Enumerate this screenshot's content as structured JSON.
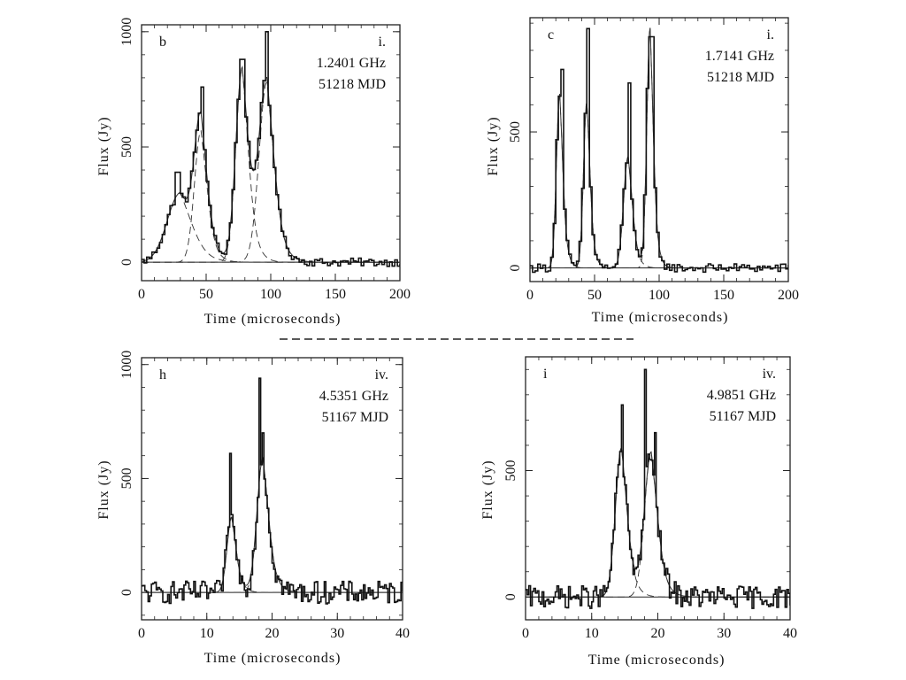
{
  "figure": {
    "separator_style": "dashed"
  },
  "chart_data": [
    {
      "type": "line",
      "panel_letter": "b",
      "roman": "i.",
      "frequency": "1.2401 GHz",
      "mjd": "51218 MJD",
      "xlabel": "Time (microseconds)",
      "ylabel": "Flux (Jy)",
      "xlim": [
        0,
        200
      ],
      "ylim": [
        -80,
        1030
      ],
      "xticks": [
        0,
        50,
        100,
        150,
        200
      ],
      "yticks": [
        0,
        500,
        1000
      ],
      "pulses": [
        {
          "amp": 300,
          "center": 30,
          "width": 10
        },
        {
          "amp": 570,
          "center": 46,
          "width": 5
        },
        {
          "amp": 840,
          "center": 78,
          "width": 5
        },
        {
          "amp": 780,
          "center": 97,
          "width": 6
        }
      ],
      "data_peaks": [
        {
          "t": 27,
          "v": 390
        },
        {
          "t": 46,
          "v": 760
        },
        {
          "t": 77,
          "v": 880
        },
        {
          "t": 96,
          "v": 1000
        }
      ],
      "tail": 6,
      "noise": 18,
      "step": 2
    },
    {
      "type": "line",
      "panel_letter": "c",
      "roman": "i.",
      "frequency": "1.7141 GHz",
      "mjd": "51218 MJD",
      "xlabel": "Time (microseconds)",
      "ylabel": "Flux (Jy)",
      "xlim": [
        0,
        200
      ],
      "ylim": [
        -50,
        920
      ],
      "xticks": [
        0,
        50,
        100,
        150,
        200
      ],
      "yticks": [
        0,
        500
      ],
      "pulses": [
        {
          "amp": 640,
          "center": 23,
          "width": 2.5
        },
        {
          "amp": 610,
          "center": 44,
          "width": 2.5
        },
        {
          "amp": 410,
          "center": 76,
          "width": 3.5
        },
        {
          "amp": 880,
          "center": 93,
          "width": 2.5
        }
      ],
      "data_peaks": [
        {
          "t": 24,
          "v": 730
        },
        {
          "t": 44,
          "v": 880
        },
        {
          "t": 76,
          "v": 680
        },
        {
          "t": 93,
          "v": 850
        }
      ],
      "tail": 4,
      "noise": 16,
      "step": 2
    },
    {
      "type": "line",
      "panel_letter": "h",
      "roman": "iv.",
      "frequency": "4.5351 GHz",
      "mjd": "51167 MJD",
      "xlabel": "Time (microseconds)",
      "ylabel": "Flux (Jy)",
      "xlim": [
        0,
        40
      ],
      "ylim": [
        -120,
        1030
      ],
      "xticks": [
        0,
        10,
        20,
        30,
        40
      ],
      "yticks": [
        0,
        500,
        1000
      ],
      "pulses": [
        {
          "amp": 330,
          "center": 13.8,
          "width": 0.7
        },
        {
          "amp": 590,
          "center": 18.6,
          "width": 0.9
        }
      ],
      "data_peaks": [
        {
          "t": 13.5,
          "v": 610
        },
        {
          "t": 18.0,
          "v": 940
        },
        {
          "t": 18.6,
          "v": 700
        }
      ],
      "tail": 1.2,
      "noise": 50,
      "step": 0.25
    },
    {
      "type": "line",
      "panel_letter": "i",
      "roman": "iv.",
      "frequency": "4.9851 GHz",
      "mjd": "51167 MJD",
      "xlabel": "Time (microseconds)",
      "ylabel": "Flux (Jy)",
      "xlim": [
        0,
        40
      ],
      "ylim": [
        -90,
        950
      ],
      "xticks": [
        0,
        10,
        20,
        30,
        40
      ],
      "yticks": [
        0,
        500
      ],
      "pulses": [
        {
          "amp": 590,
          "center": 14.5,
          "width": 0.9
        },
        {
          "amp": 570,
          "center": 19.0,
          "width": 1.0
        }
      ],
      "data_peaks": [
        {
          "t": 14.5,
          "v": 760
        },
        {
          "t": 18.0,
          "v": 900
        },
        {
          "t": 19.5,
          "v": 650
        }
      ],
      "tail": 1.2,
      "noise": 45,
      "step": 0.25
    }
  ]
}
